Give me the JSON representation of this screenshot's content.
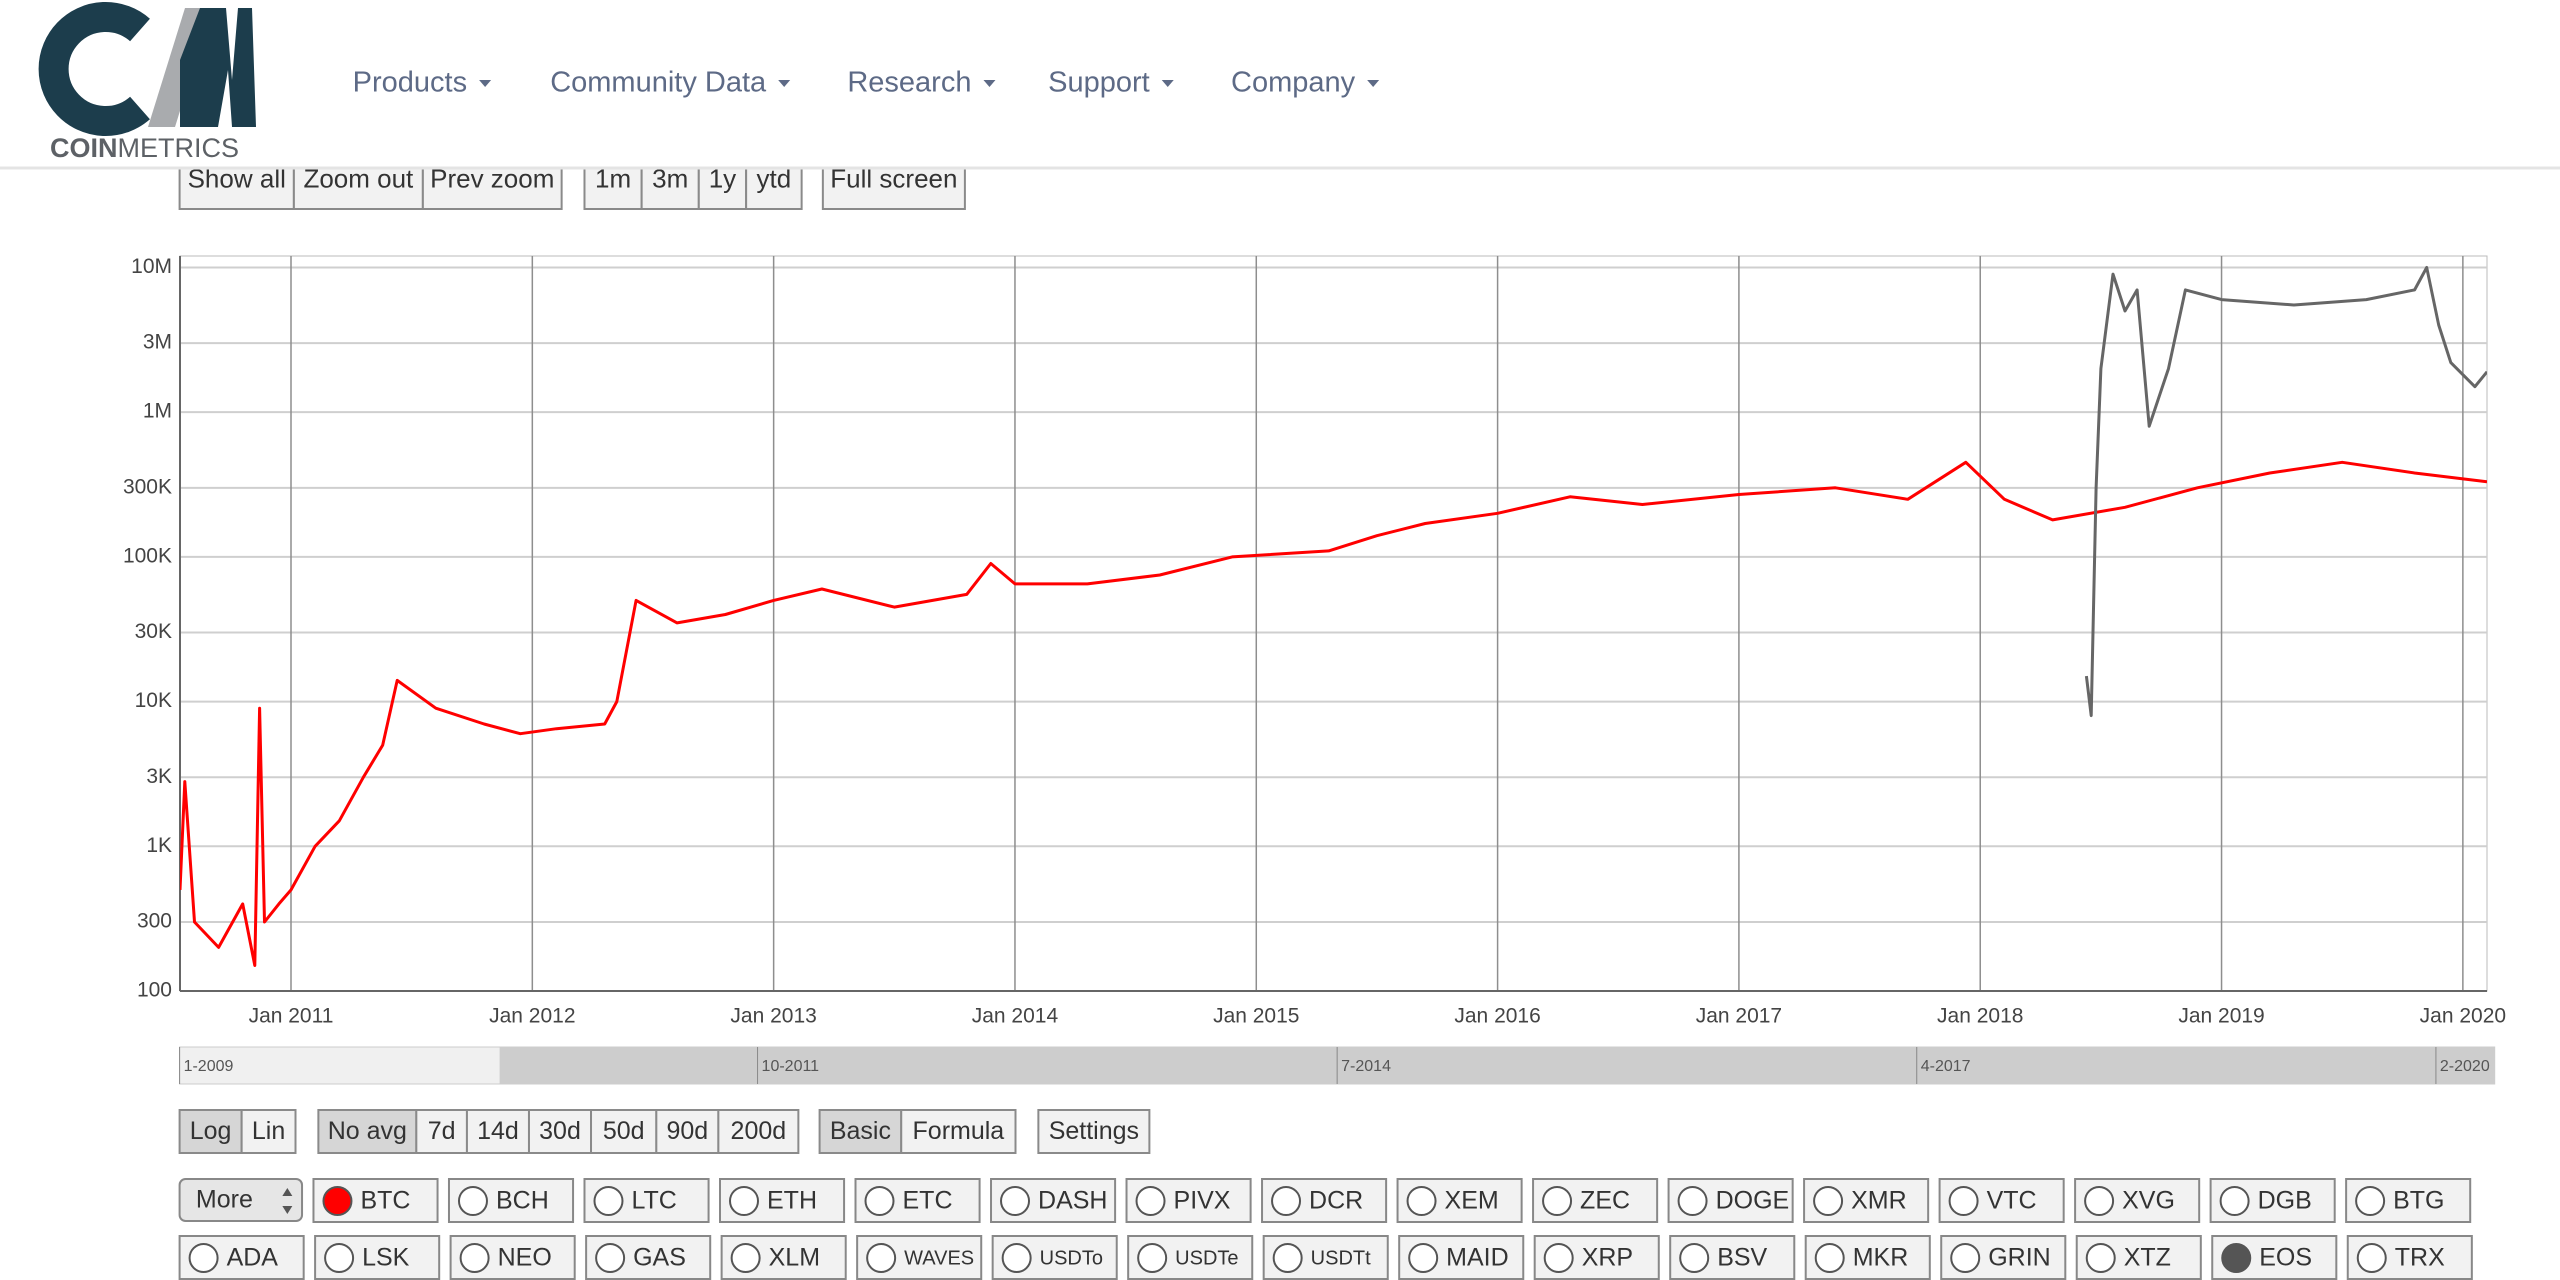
{
  "header": {
    "logo": {
      "bold": "COIN",
      "light": "METRICS"
    },
    "nav": [
      "Products",
      "Community Data",
      "Research",
      "Support",
      "Company"
    ]
  },
  "toolbar": {
    "groups": [
      [
        "Show all",
        "Zoom out",
        "Prev zoom"
      ],
      [
        "1m",
        "3m",
        "1y",
        "ytd"
      ],
      [
        "Full screen"
      ]
    ]
  },
  "chart_data": {
    "type": "line",
    "log_scale": true,
    "grid": true,
    "xlim": [
      2010.54,
      2020.1
    ],
    "xticks": [
      {
        "value": 2011,
        "label": "Jan 2011"
      },
      {
        "value": 2012,
        "label": "Jan 2012"
      },
      {
        "value": 2013,
        "label": "Jan 2013"
      },
      {
        "value": 2014,
        "label": "Jan 2014"
      },
      {
        "value": 2015,
        "label": "Jan 2015"
      },
      {
        "value": 2016,
        "label": "Jan 2016"
      },
      {
        "value": 2017,
        "label": "Jan 2017"
      },
      {
        "value": 2018,
        "label": "Jan 2018"
      },
      {
        "value": 2019,
        "label": "Jan 2019"
      },
      {
        "value": 2020,
        "label": "Jan 2020"
      }
    ],
    "ylim": [
      100,
      12000000
    ],
    "yticks": [
      100,
      300,
      {
        "value": 1000,
        "label": "1K"
      },
      {
        "value": 3000,
        "label": "3K"
      },
      {
        "value": 10000,
        "label": "10K"
      },
      {
        "value": 30000,
        "label": "30K"
      },
      {
        "value": 100000,
        "label": "100K"
      },
      {
        "value": 300000,
        "label": "300K"
      },
      {
        "value": 1000000,
        "label": "1M"
      },
      {
        "value": 3000000,
        "label": "3M"
      },
      {
        "value": 10000000,
        "label": "10M"
      }
    ],
    "series": [
      {
        "color": "#ff0000",
        "x": [
          2010.54,
          2010.56,
          2010.6,
          2010.7,
          2010.8,
          2010.85,
          2010.87,
          2010.89,
          2010.95,
          2011.0,
          2011.1,
          2011.2,
          2011.3,
          2011.38,
          2011.44,
          2011.6,
          2011.8,
          2011.95,
          2012.1,
          2012.3,
          2012.35,
          2012.43,
          2012.6,
          2012.8,
          2013.0,
          2013.2,
          2013.5,
          2013.8,
          2013.9,
          2014.0,
          2014.3,
          2014.6,
          2014.9,
          2015.3,
          2015.5,
          2015.7,
          2016.0,
          2016.3,
          2016.6,
          2017.0,
          2017.4,
          2017.7,
          2017.94,
          2018.1,
          2018.3,
          2018.6,
          2018.9,
          2019.2,
          2019.5,
          2019.8,
          2020.1
        ],
        "values": [
          500,
          2800,
          300,
          200,
          400,
          150,
          9000,
          300,
          400,
          500,
          1000,
          1500,
          3000,
          5000,
          14000,
          9000,
          7000,
          6000,
          6500,
          7000,
          10000,
          50000,
          35000,
          40000,
          50000,
          60000,
          45000,
          55000,
          90000,
          65000,
          65000,
          75000,
          100000,
          110000,
          140000,
          170000,
          200000,
          260000,
          230000,
          270000,
          300000,
          250000,
          450000,
          250000,
          180000,
          220000,
          300000,
          380000,
          450000,
          380000,
          330000
        ]
      },
      {
        "color": "#666666",
        "x": [
          2018.44,
          2018.46,
          2018.48,
          2018.5,
          2018.55,
          2018.6,
          2018.65,
          2018.7,
          2018.78,
          2018.85,
          2019.0,
          2019.3,
          2019.6,
          2019.8,
          2019.85,
          2019.9,
          2019.95,
          2020.05,
          2020.1
        ],
        "values": [
          15000,
          8000,
          300000,
          2000000,
          9000000,
          5000000,
          7000000,
          800000,
          2000000,
          7000000,
          6000000,
          5500000,
          6000000,
          7000000,
          10000000,
          4000000,
          2200000,
          1500000,
          1900000
        ]
      }
    ]
  },
  "navigator": {
    "labels": [
      "1-2009",
      "10-2011",
      "7-2014",
      "4-2017",
      "2-2020"
    ]
  },
  "controls": {
    "groups": [
      [
        {
          "label": "Log",
          "active": true
        },
        {
          "label": "Lin"
        }
      ],
      [
        {
          "label": "No avg",
          "active": true
        },
        {
          "label": "7d"
        },
        {
          "label": "14d"
        },
        {
          "label": "30d"
        },
        {
          "label": "50d"
        },
        {
          "label": "90d"
        },
        {
          "label": "200d"
        }
      ],
      [
        {
          "label": "Basic",
          "active": true
        },
        {
          "label": "Formula"
        }
      ],
      [
        {
          "label": "Settings"
        }
      ]
    ]
  },
  "assets": {
    "more": "More",
    "items": [
      {
        "name": "BTC",
        "color": "#ff0000"
      },
      {
        "name": "BCH"
      },
      {
        "name": "LTC"
      },
      {
        "name": "ETH"
      },
      {
        "name": "ETC"
      },
      {
        "name": "DASH"
      },
      {
        "name": "PIVX"
      },
      {
        "name": "DCR"
      },
      {
        "name": "XEM"
      },
      {
        "name": "ZEC"
      },
      {
        "name": "DOGE"
      },
      {
        "name": "XMR"
      },
      {
        "name": "VTC"
      },
      {
        "name": "XVG"
      },
      {
        "name": "DGB"
      },
      {
        "name": "BTG"
      },
      {
        "name": "ADA"
      },
      {
        "name": "LSK"
      },
      {
        "name": "NEO"
      },
      {
        "name": "GAS"
      },
      {
        "name": "XLM"
      },
      {
        "name": "WAVES"
      },
      {
        "name": "USDTo"
      },
      {
        "name": "USDTe"
      },
      {
        "name": "USDTt"
      },
      {
        "name": "MAID"
      },
      {
        "name": "XRP"
      },
      {
        "name": "BSV"
      },
      {
        "name": "MKR"
      },
      {
        "name": "GRIN"
      },
      {
        "name": "XTZ"
      },
      {
        "name": "EOS",
        "color": "#555555"
      },
      {
        "name": "TRX"
      }
    ]
  }
}
